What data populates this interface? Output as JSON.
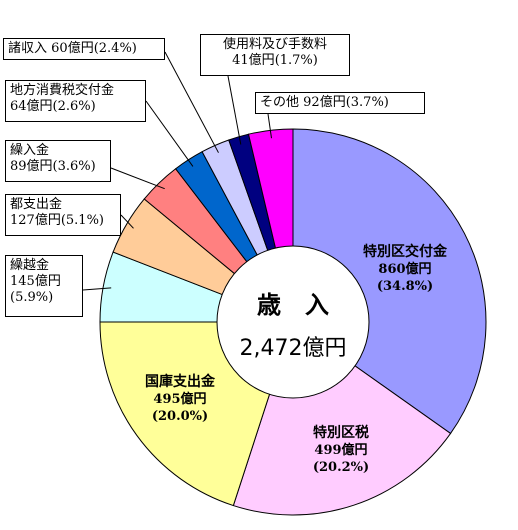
{
  "chart_data": {
    "type": "pie",
    "style": "donut",
    "center": {
      "title": "歳　入",
      "value": "2,472億円"
    },
    "slices": [
      {
        "name": "特別区交付金",
        "amount": "860億円",
        "percent": "(34.8%)",
        "value": 34.8,
        "color": "#9999ff"
      },
      {
        "name": "特別区税",
        "amount": "499億円",
        "percent": "(20.2%)",
        "value": 20.2,
        "color": "#ffccff"
      },
      {
        "name": "国庫支出金",
        "amount": "495億円",
        "percent": "(20.0%)",
        "value": 20.0,
        "color": "#ffff99"
      },
      {
        "name": "繰越金",
        "amount": "145億円",
        "percent": "(5.9%)",
        "value": 5.9,
        "color": "#ccffff"
      },
      {
        "name": "都支出金",
        "amount": "127億円",
        "percent": "(5.1%)",
        "value": 5.1,
        "color": "#ffcc99"
      },
      {
        "name": "繰入金",
        "amount": "89億円",
        "percent": "(3.6%)",
        "value": 3.6,
        "color": "#ff8080"
      },
      {
        "name": "地方消費税交付金",
        "amount": "64億円",
        "percent": "(2.6%)",
        "value": 2.6,
        "color": "#0066cc"
      },
      {
        "name": "諸収入",
        "amount": "60億円",
        "percent": "(2.4%)",
        "value": 2.4,
        "color": "#ccccff"
      },
      {
        "name": "使用料及び手数料",
        "amount": "41億円",
        "percent": "(1.7%)",
        "value": 1.7,
        "color": "#000080"
      },
      {
        "name": "その他",
        "amount": "92億円",
        "percent": "(3.7%)",
        "value": 3.7,
        "color": "#ff00ff"
      }
    ]
  }
}
